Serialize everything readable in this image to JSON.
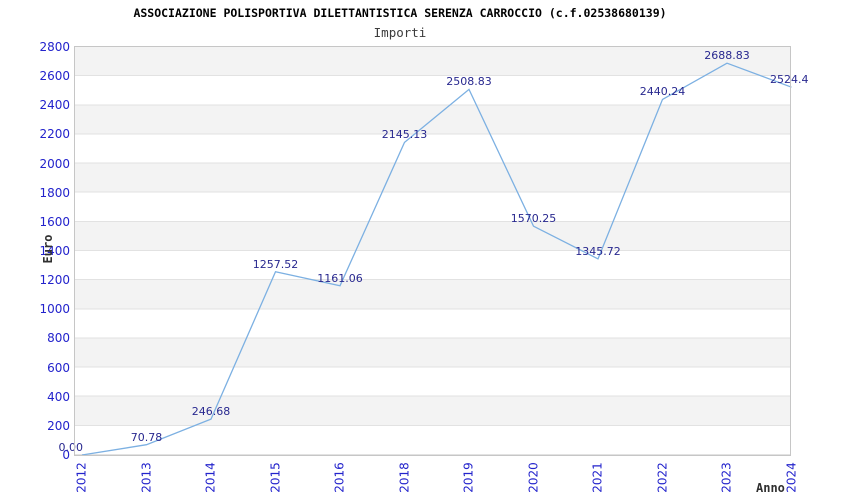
{
  "header": {
    "title": "ASSOCIAZIONE POLISPORTIVA DILETTANTISTICA SERENZA CARROCCIO (c.f.02538680139)",
    "subtitle": "Importi"
  },
  "chart_data": {
    "type": "line",
    "title": "ASSOCIAZIONE POLISPORTIVA DILETTANTISTICA SERENZA CARROCCIO (c.f.02538680139)",
    "subtitle": "Importi",
    "xlabel": "Anno",
    "ylabel": "Euro",
    "categories": [
      "2012",
      "2013",
      "2014",
      "2015",
      "2016",
      "2018",
      "2019",
      "2020",
      "2021",
      "2022",
      "2023",
      "2024"
    ],
    "values": [
      0,
      70.78,
      246.68,
      1257.52,
      1161.06,
      2145.13,
      2508.83,
      1570.25,
      1345.72,
      2440.24,
      2688.83,
      2524.4
    ],
    "point_labels": [
      "0.00",
      "70.78",
      "246.68",
      "1257.52",
      "1161.06",
      "2145.13",
      "2508.83",
      "1570.25",
      "1345.72",
      "2440.24",
      "2688.83",
      "2524.4"
    ],
    "yticks": [
      "0",
      "200",
      "400",
      "600",
      "800",
      "1000",
      "1200",
      "1400",
      "1600",
      "1800",
      "2000",
      "2200",
      "2400",
      "2600",
      "2800"
    ],
    "ylim": [
      0,
      2800
    ],
    "ytick_step": 200,
    "grid": "horizontal-bands-alternating",
    "legend": "none",
    "x_tick_rotation": -90,
    "colors": {
      "line": "#7cb0e2",
      "tick_label": "#2323cc",
      "point_label": "#28288f",
      "band_gray": "#f3f3f3",
      "gridline": "#e2e2e2",
      "plot_border": "#c6c6c6",
      "axis_title": "#303030"
    }
  }
}
